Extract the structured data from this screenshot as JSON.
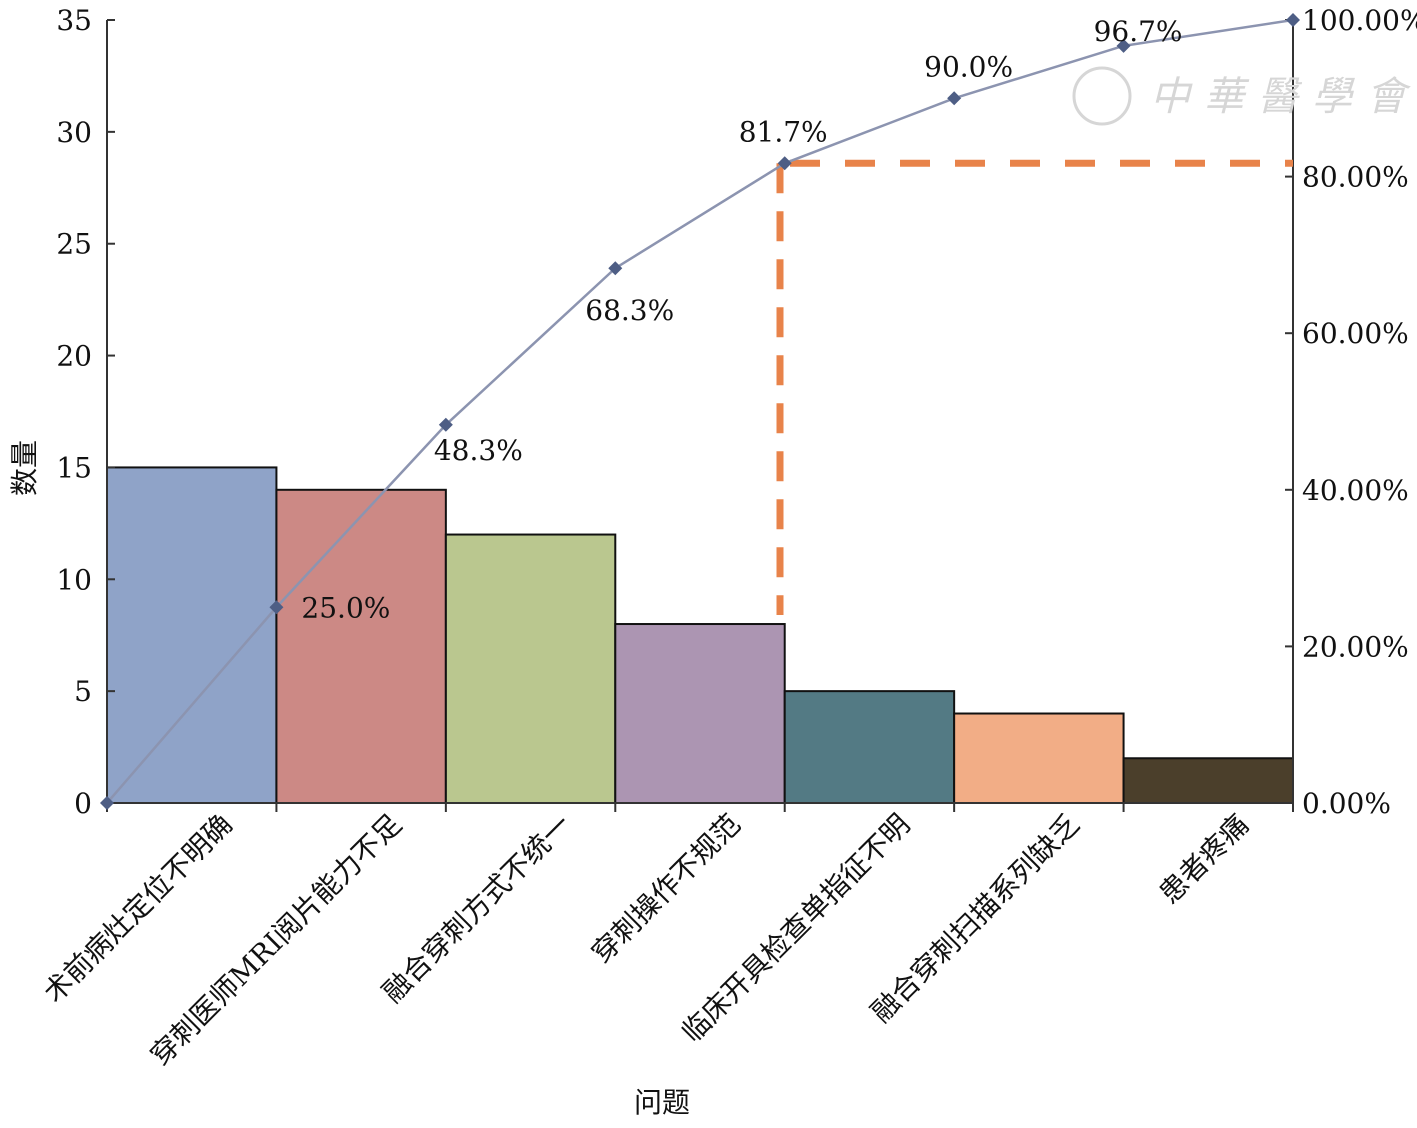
{
  "chart_data": {
    "type": "bar",
    "subtype": "pareto",
    "categories": [
      "术前病灶定位不明确",
      "穿刺医师MRI阅片能力不足",
      "融合穿刺方式不统一",
      "穿刺操作不规范",
      "临床开具检查单指征不明",
      "融合穿刺扫描系列缺乏",
      "患者疼痛"
    ],
    "values": [
      15,
      14,
      12,
      8,
      5,
      4,
      2
    ],
    "cumulative_percent": [
      0,
      25.0,
      48.3,
      68.3,
      81.7,
      90.0,
      96.7,
      100.0
    ],
    "cumulative_labels": [
      "25.0%",
      "48.3%",
      "68.3%",
      "81.7%",
      "90.0%",
      "96.7%"
    ],
    "xlabel": "问题",
    "ylabel": "数量",
    "ylim": [
      0,
      35
    ],
    "y_ticks": [
      "0",
      "5",
      "10",
      "15",
      "20",
      "25",
      "30",
      "35"
    ],
    "y2lim": [
      0,
      100
    ],
    "y2_ticks": [
      "0.00%",
      "20.00%",
      "40.00%",
      "60.00%",
      "80.00%",
      "100.00%"
    ],
    "reference_line_percent": 81.7,
    "bar_colors": [
      "#8fa3c8",
      "#cc8985",
      "#bac78f",
      "#ac95b2",
      "#537a84",
      "#f2ad86",
      "#4b3f2b"
    ],
    "line_color": "#8c94b0",
    "marker_color": "#4e5e85",
    "reference_color": "#e8834a",
    "grid": false,
    "watermark": "中華醫學會"
  }
}
